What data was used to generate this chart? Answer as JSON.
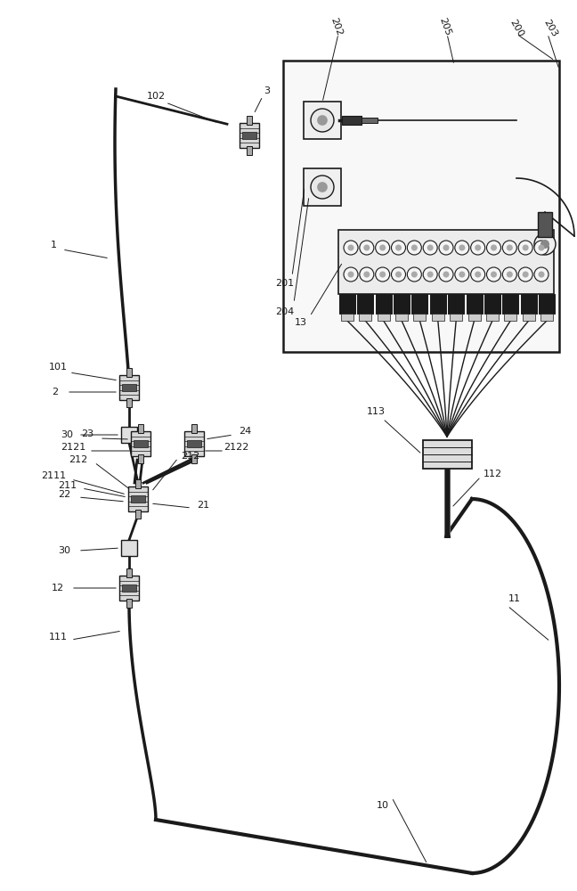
{
  "bg_color": "#ffffff",
  "line_color": "#1a1a1a",
  "fig_width": 6.48,
  "fig_height": 10.0,
  "dpi": 100
}
